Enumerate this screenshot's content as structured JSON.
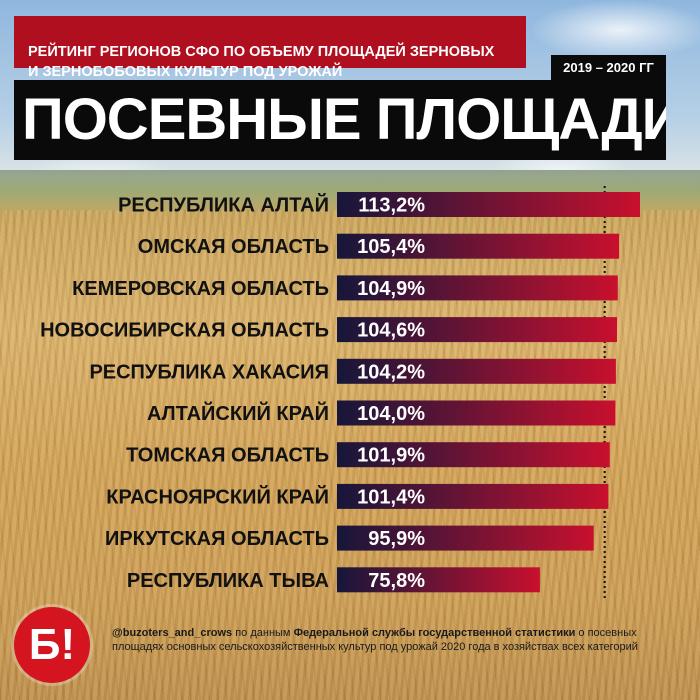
{
  "header": {
    "subtitle": "РЕЙТИНГ РЕГИОНОВ СФО ПО ОБЪЕМУ ПЛОЩАДЕЙ ЗЕРНОВЫХ\nИ ЗЕРНОБОБОВЫХ КУЛЬТУР ПОД УРОЖАЙ",
    "years": "2019 – 2020 ГГ",
    "title": "ПОСЕВНЫЕ ПЛОЩАДИ"
  },
  "chart_data": {
    "type": "bar",
    "orientation": "horizontal",
    "categories": [
      "РЕСПУБЛИКА АЛТАЙ",
      "ОМСКАЯ ОБЛАСТЬ",
      "КЕМЕРОВСКАЯ ОБЛАСТЬ",
      "НОВОСИБИРСКАЯ ОБЛАСТЬ",
      "РЕСПУБЛИКА ХАКАСИЯ",
      "АЛТАЙСКИЙ КРАЙ",
      "ТОМСКАЯ ОБЛАСТЬ",
      "КРАСНОЯРСКИЙ КРАЙ",
      "ИРКУТСКАЯ ОБЛАСТЬ",
      "РЕСПУБЛИКА ТЫВА"
    ],
    "values": [
      113.2,
      105.4,
      104.9,
      104.6,
      104.2,
      104.0,
      101.9,
      101.4,
      95.9,
      75.8
    ],
    "value_labels": [
      "113,2%",
      "105,4%",
      "104,9%",
      "104,6%",
      "104,2%",
      "104,0%",
      "101,9%",
      "101,4%",
      "95,9%",
      "75,8%"
    ],
    "reference_line": 100,
    "bar_colors": {
      "start": "#16163a",
      "end": "#c8102e"
    }
  },
  "footer": {
    "handle": "@buzoters_and_crows",
    "text1": " по данным ",
    "source": "Федеральной службы государственной статистики",
    "text2": " о посевных площадях основных сельскохозяйственных культур под урожай 2020 года в хозяйствах всех категорий"
  },
  "logo": {
    "text": "Б!",
    "color": "#d4141e"
  }
}
